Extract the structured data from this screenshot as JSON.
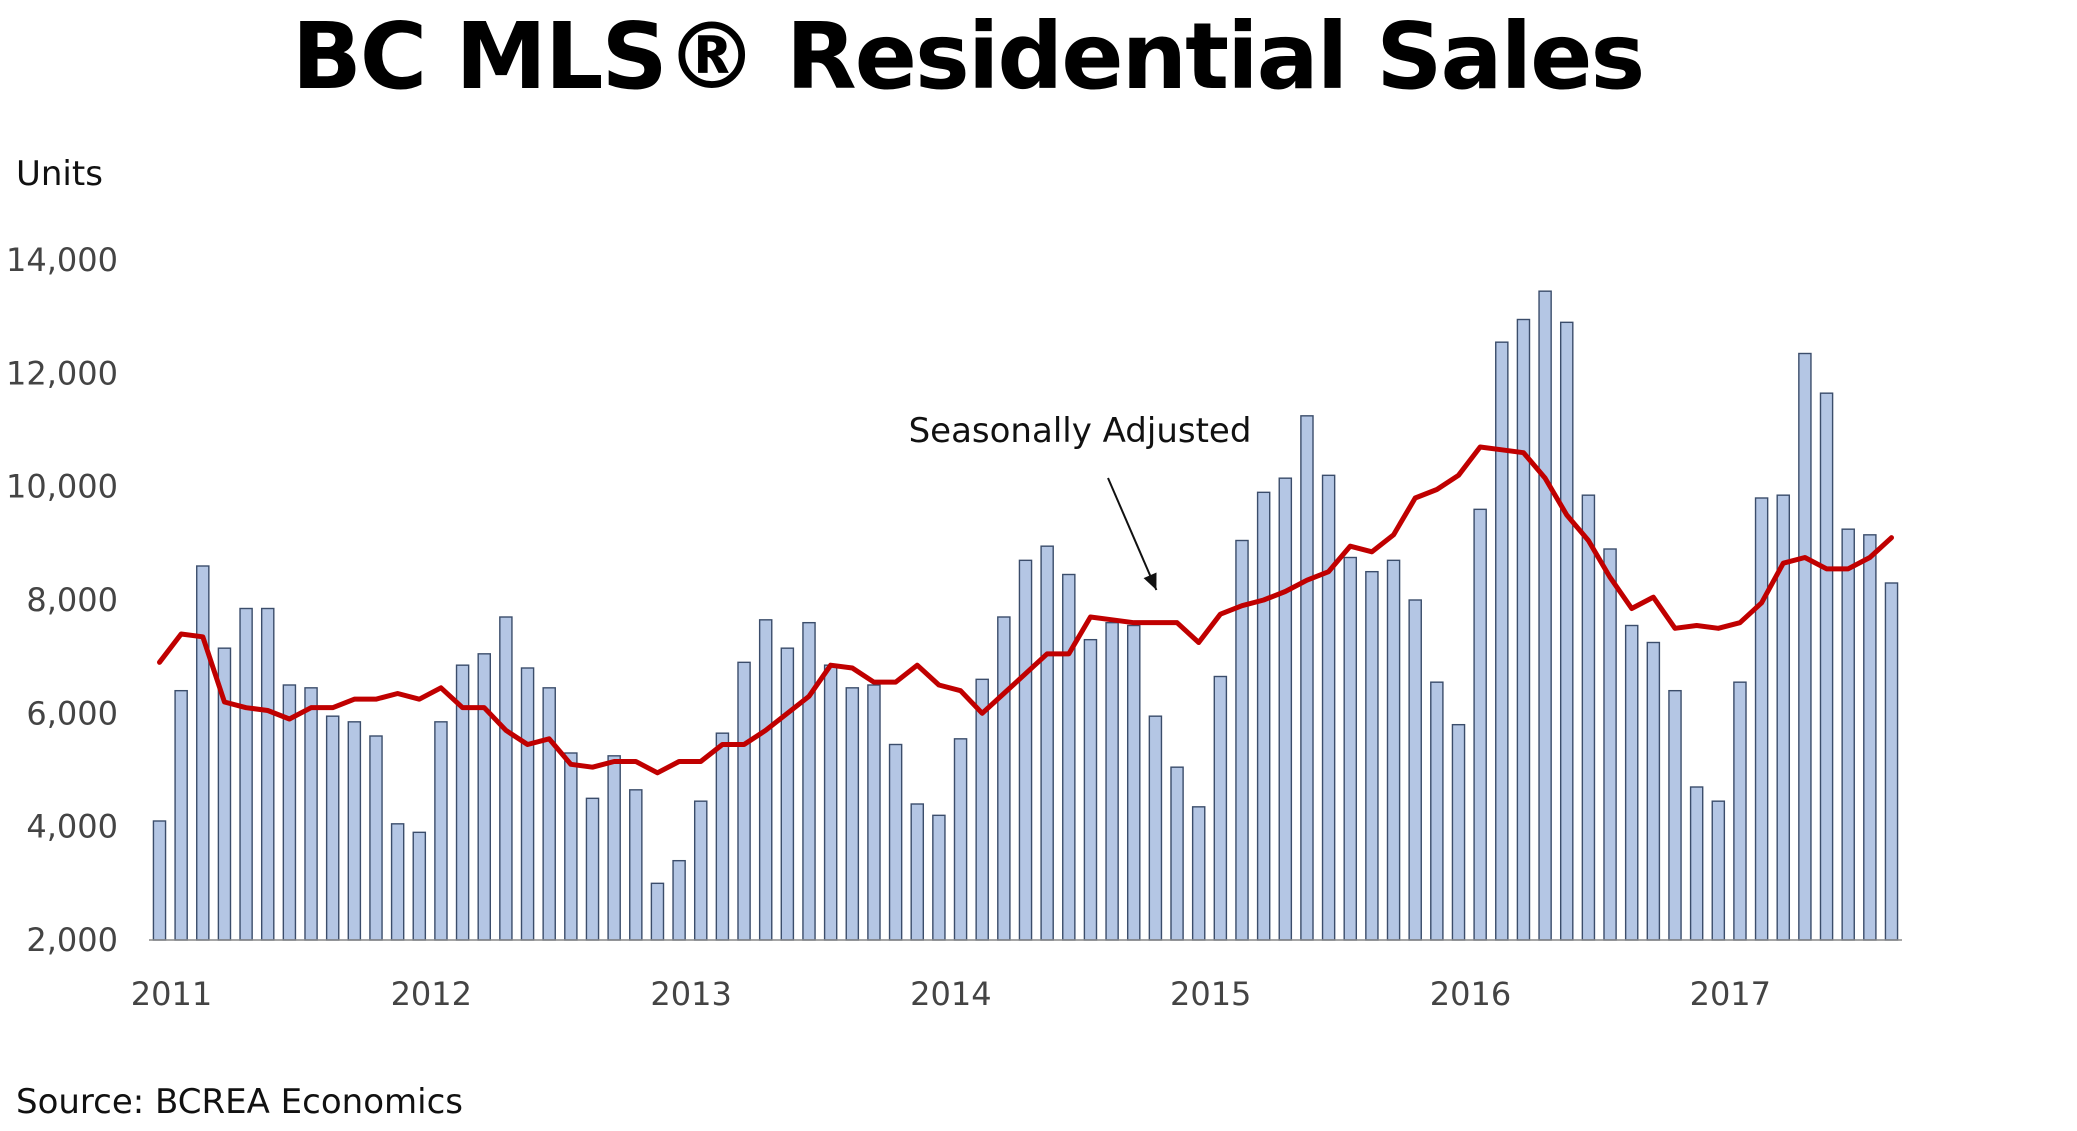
{
  "chart_data": {
    "type": "bar",
    "title": "BC MLS® Residential Sales",
    "ylabel": "Units",
    "xlabel": "",
    "ylim": [
      2000,
      14000
    ],
    "yticks": [
      2000,
      4000,
      6000,
      8000,
      10000,
      12000,
      14000
    ],
    "ytick_labels": [
      "2,000",
      "4,000",
      "6,000",
      "8,000",
      "10,000",
      "12,000",
      "14,000"
    ],
    "xtick_labels": [
      "2011",
      "2012",
      "2013",
      "2014",
      "2015",
      "2016",
      "2017"
    ],
    "start": "2011-01",
    "grid": false,
    "colors": {
      "bars": "#b4c6e4",
      "bar_edge": "#3b4d6b",
      "line": "#c00000"
    },
    "series": [
      {
        "type": "bar",
        "values": [
          4100,
          6400,
          8600,
          7150,
          7850,
          7850,
          6500,
          6450,
          5950,
          5850,
          5600,
          4050,
          3900,
          5850,
          6850,
          7050,
          7700,
          6800,
          6450,
          5300,
          4500,
          5250,
          4650,
          3000,
          3400,
          4450,
          5650,
          6900,
          7650,
          7150,
          7600,
          6850,
          6450,
          6500,
          5450,
          4400,
          4200,
          5550,
          6600,
          7700,
          8700,
          8950,
          8450,
          7300,
          7600,
          7550,
          5950,
          5050,
          4350,
          6650,
          9050,
          9900,
          10150,
          11250,
          10200,
          8750,
          8500,
          8700,
          8000,
          6550,
          5800,
          9600,
          12550,
          12950,
          13450,
          12900,
          9850,
          8900,
          7550,
          7250,
          6400,
          4700,
          4450,
          6550,
          9800,
          9850,
          12350,
          11650,
          9250,
          9150,
          8300
        ]
      },
      {
        "type": "line",
        "name": "Seasonally Adjusted",
        "values": [
          6900,
          7400,
          7350,
          6200,
          6100,
          6050,
          5900,
          6100,
          6100,
          6250,
          6250,
          6350,
          6250,
          6450,
          6100,
          6100,
          5700,
          5450,
          5550,
          5100,
          5050,
          5150,
          5150,
          4950,
          5150,
          5150,
          5450,
          5450,
          5700,
          6000,
          6300,
          6850,
          6800,
          6550,
          6550,
          6850,
          6500,
          6400,
          6000,
          6350,
          6700,
          7050,
          7050,
          7700,
          7650,
          7600,
          7600,
          7600,
          7250,
          7750,
          7900,
          8000,
          8150,
          8350,
          8500,
          8950,
          8850,
          9150,
          9800,
          9950,
          10200,
          10700,
          10650,
          10600,
          10150,
          9500,
          9050,
          8400,
          7850,
          8050,
          7500,
          7550,
          7500,
          7600,
          7950,
          8650,
          8750,
          8550,
          8550,
          8750,
          9100
        ]
      }
    ],
    "annotations": [
      {
        "text": "Seasonally Adjusted",
        "points_to_index": 46
      }
    ],
    "source": "Source: BCREA Economics"
  }
}
